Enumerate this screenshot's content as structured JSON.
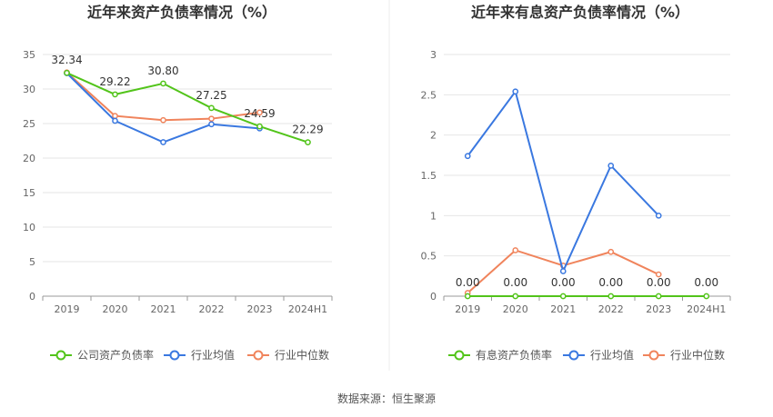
{
  "source_text": "数据来源：恒生聚源",
  "colors": {
    "company": "#52c41a",
    "avg": "#3a78e0",
    "median": "#f0845c",
    "grid": "#e6e6e6",
    "axis": "#999999"
  },
  "chart_data": [
    {
      "type": "line",
      "title": "近年来资产负债率情况（%）",
      "categories": [
        "2019",
        "2020",
        "2021",
        "2022",
        "2023",
        "2024H1"
      ],
      "ylim": [
        0,
        35
      ],
      "yticks": [
        "0",
        "5",
        "10",
        "15",
        "20",
        "25",
        "30",
        "35"
      ],
      "grid": true,
      "legend_position": "bottom-left",
      "series": [
        {
          "name": "公司资产负债率",
          "values": [
            32.34,
            29.22,
            30.8,
            27.25,
            24.59,
            22.29
          ],
          "labels": [
            "32.34",
            "29.22",
            "30.80",
            "27.25",
            "24.59",
            "22.29"
          ]
        },
        {
          "name": "行业均值",
          "values": [
            32.3,
            25.4,
            22.3,
            24.9,
            24.3,
            null
          ]
        },
        {
          "name": "行业中位数",
          "values": [
            32.4,
            26.1,
            25.5,
            25.7,
            26.6,
            null
          ]
        }
      ]
    },
    {
      "type": "line",
      "title": "近年来有息资产负债率情况（%）",
      "categories": [
        "2019",
        "2020",
        "2021",
        "2022",
        "2023",
        "2024H1"
      ],
      "ylim": [
        0,
        3
      ],
      "yticks": [
        "0",
        "0.5",
        "1",
        "1.5",
        "2",
        "2.5",
        "3"
      ],
      "grid": true,
      "legend_position": "bottom-left",
      "series": [
        {
          "name": "有息资产负债率",
          "values": [
            0.0,
            0.0,
            0.0,
            0.0,
            0.0,
            0.0
          ],
          "labels": [
            "0.00",
            "0.00",
            "0.00",
            "0.00",
            "0.00",
            "0.00"
          ]
        },
        {
          "name": "行业均值",
          "values": [
            1.74,
            2.54,
            0.31,
            1.62,
            1.0,
            null
          ]
        },
        {
          "name": "行业中位数",
          "values": [
            0.04,
            0.57,
            0.38,
            0.55,
            0.27,
            null
          ]
        }
      ]
    }
  ]
}
